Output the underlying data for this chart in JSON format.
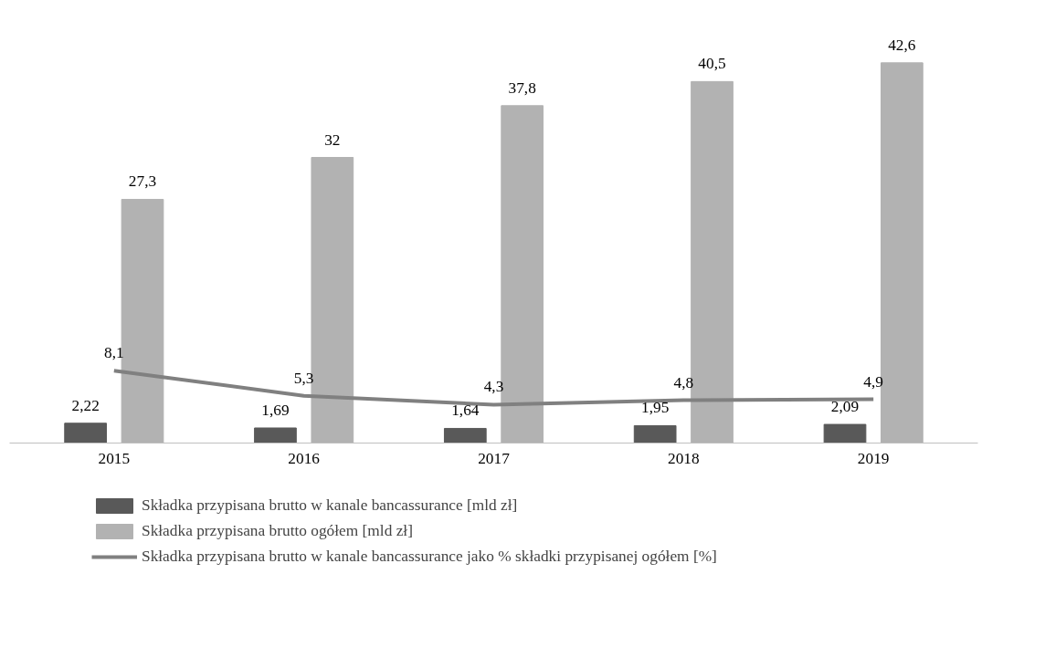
{
  "chart_data": {
    "type": "bar",
    "categories": [
      "2015",
      "2016",
      "2017",
      "2018",
      "2019"
    ],
    "series": [
      {
        "name": "Składka przypisana brutto w kanale bancassurance [mld zł]",
        "color": "#595959",
        "values": [
          2.22,
          1.69,
          1.64,
          1.95,
          2.09
        ],
        "value_labels": [
          "2,22",
          "1,69",
          "1,64",
          "1,95",
          "2,09"
        ]
      },
      {
        "name": "Składka przypisana brutto ogółem [mld zł]",
        "color": "#b2b2b2",
        "values": [
          27.3,
          32,
          37.8,
          40.5,
          42.6
        ],
        "value_labels": [
          "27,3",
          "32",
          "37,8",
          "40,5",
          "42,6"
        ]
      },
      {
        "name": "Składka przypisana brutto w kanale bancassurance jako % składki przypisanej ogółem [%]",
        "color": "#808080",
        "type": "line",
        "values": [
          8.1,
          5.3,
          4.3,
          4.8,
          4.9
        ],
        "value_labels": [
          "8,1",
          "5,3",
          "4,3",
          "4,8",
          "4,9"
        ]
      }
    ],
    "tick_labels": "x",
    "legend": "bottom",
    "line_style": "solid"
  }
}
